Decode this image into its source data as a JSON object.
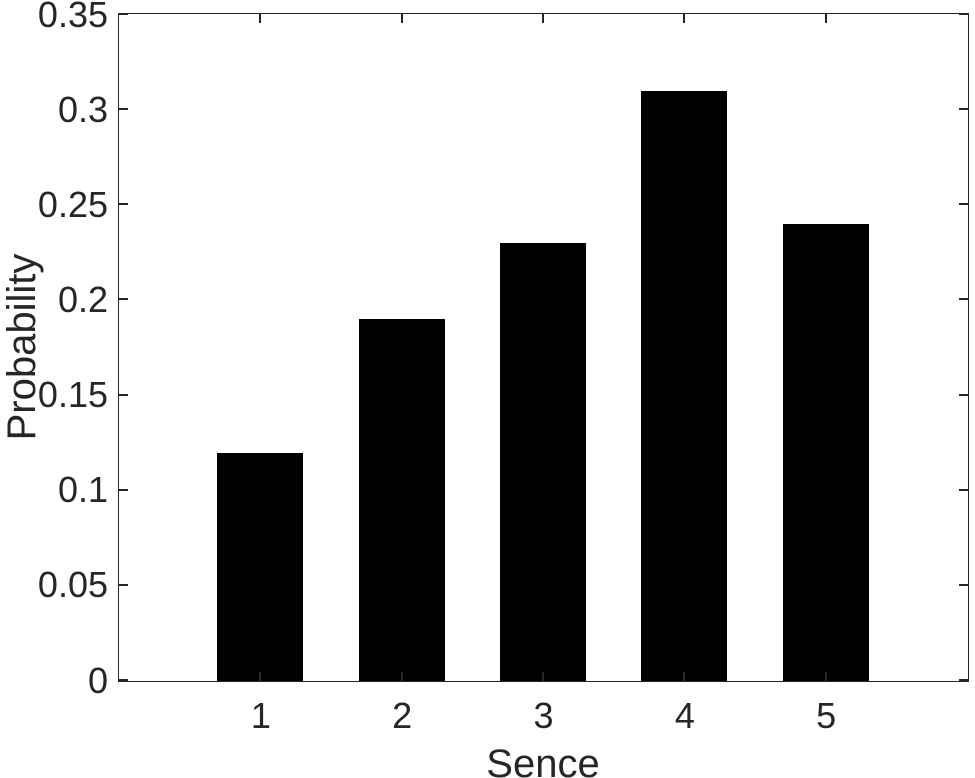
{
  "chart_data": {
    "type": "bar",
    "title": "",
    "xlabel": "Sence",
    "ylabel": "Probability",
    "categories": [
      "1",
      "2",
      "3",
      "4",
      "5"
    ],
    "x": [
      1,
      2,
      3,
      4,
      5
    ],
    "values": [
      0.12,
      0.19,
      0.23,
      0.31,
      0.24
    ],
    "xlim": [
      0,
      6
    ],
    "ylim": [
      0,
      0.35
    ],
    "ytick_values": [
      0,
      0.05,
      0.1,
      0.15,
      0.2,
      0.25,
      0.3,
      0.35
    ],
    "ytick_labels": [
      "0",
      "0.05",
      "0.1",
      "0.15",
      "0.2",
      "0.25",
      "0.3",
      "0.35"
    ],
    "bar_width_fraction": 0.61,
    "grid": false,
    "legend": "none",
    "box": "on",
    "tick_direction": "in",
    "colors": {
      "bar_fill": "#000000",
      "axis": "#262626",
      "text": "#262626",
      "background": "#ffffff"
    }
  }
}
